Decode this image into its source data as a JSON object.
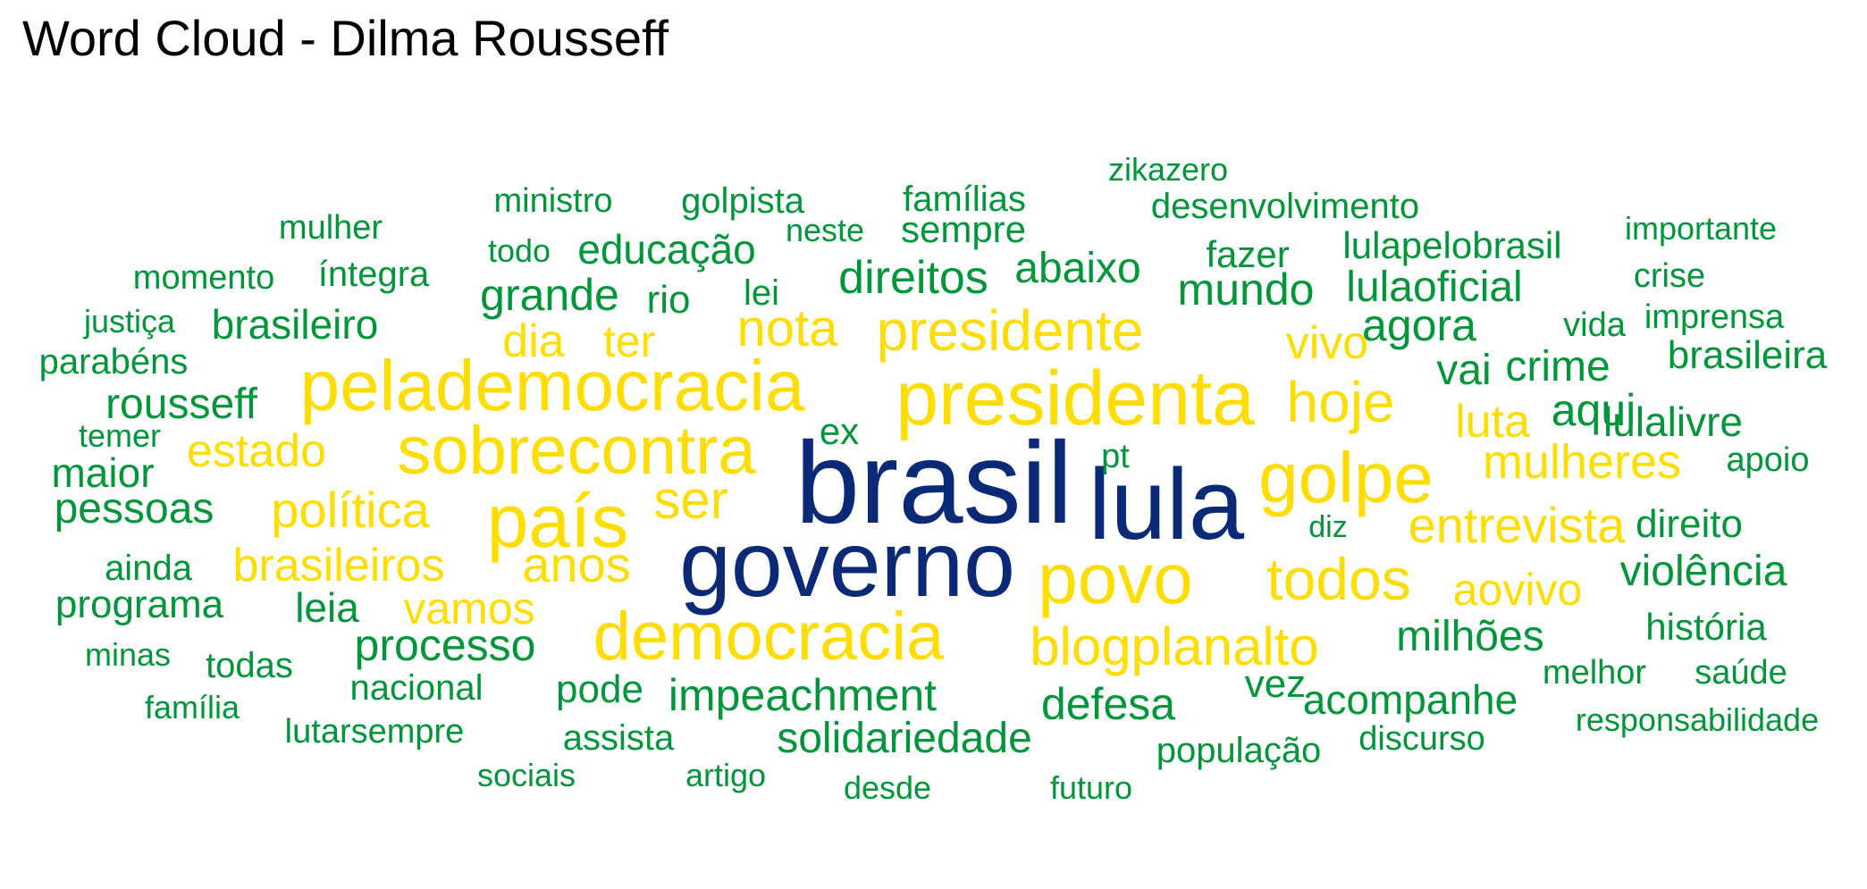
{
  "chart_data": {
    "type": "wordcloud",
    "title": "Word Cloud - Dilma Rousseff",
    "palette": {
      "navy": "#0a2a78",
      "yellow": "#ffdd00",
      "green": "#009639"
    },
    "words": [
      {
        "text": "brasil",
        "tier": 1,
        "color": "navy"
      },
      {
        "text": "lula",
        "tier": 1,
        "color": "navy"
      },
      {
        "text": "governo",
        "tier": 1,
        "color": "navy"
      },
      {
        "text": "presidenta",
        "tier": 2,
        "color": "yellow"
      },
      {
        "text": "pelademocracia",
        "tier": 2,
        "color": "yellow"
      },
      {
        "text": "sobrecontra",
        "tier": 2,
        "color": "yellow"
      },
      {
        "text": "país",
        "tier": 2,
        "color": "yellow"
      },
      {
        "text": "golpe",
        "tier": 2,
        "color": "yellow"
      },
      {
        "text": "povo",
        "tier": 2,
        "color": "yellow"
      },
      {
        "text": "democracia",
        "tier": 2,
        "color": "yellow"
      },
      {
        "text": "presidente",
        "tier": 3,
        "color": "yellow"
      },
      {
        "text": "todos",
        "tier": 3,
        "color": "yellow"
      },
      {
        "text": "hoje",
        "tier": 3,
        "color": "yellow"
      },
      {
        "text": "ser",
        "tier": 3,
        "color": "yellow"
      },
      {
        "text": "blogplanalto",
        "tier": 3,
        "color": "yellow"
      },
      {
        "text": "entrevista",
        "tier": 3,
        "color": "yellow"
      },
      {
        "text": "nota",
        "tier": 3,
        "color": "yellow"
      },
      {
        "text": "mulheres",
        "tier": 4,
        "color": "yellow"
      },
      {
        "text": "política",
        "tier": 4,
        "color": "yellow"
      },
      {
        "text": "brasileiros",
        "tier": 4,
        "color": "yellow"
      },
      {
        "text": "anos",
        "tier": 4,
        "color": "yellow"
      },
      {
        "text": "estado",
        "tier": 4,
        "color": "yellow"
      },
      {
        "text": "vivo",
        "tier": 4,
        "color": "yellow"
      },
      {
        "text": "luta",
        "tier": 4,
        "color": "yellow"
      },
      {
        "text": "aovivo",
        "tier": 4,
        "color": "yellow"
      },
      {
        "text": "dia",
        "tier": 4,
        "color": "yellow"
      },
      {
        "text": "ter",
        "tier": 4,
        "color": "yellow"
      },
      {
        "text": "vamos",
        "tier": 4,
        "color": "yellow"
      },
      {
        "text": "impeachment",
        "tier": 4,
        "color": "green"
      },
      {
        "text": "processo",
        "tier": 4,
        "color": "green"
      },
      {
        "text": "solidariedade",
        "tier": 5,
        "color": "green"
      },
      {
        "text": "direitos",
        "tier": 5,
        "color": "green"
      },
      {
        "text": "grande",
        "tier": 5,
        "color": "green"
      },
      {
        "text": "mundo",
        "tier": 5,
        "color": "green"
      },
      {
        "text": "lulaoficial",
        "tier": 5,
        "color": "green"
      },
      {
        "text": "agora",
        "tier": 5,
        "color": "green"
      },
      {
        "text": "abaixo",
        "tier": 5,
        "color": "green"
      },
      {
        "text": "defesa",
        "tier": 5,
        "color": "green"
      },
      {
        "text": "milhões",
        "tier": 5,
        "color": "green"
      },
      {
        "text": "acompanhe",
        "tier": 5,
        "color": "green"
      },
      {
        "text": "aqui",
        "tier": 5,
        "color": "green"
      },
      {
        "text": "crime",
        "tier": 5,
        "color": "green"
      },
      {
        "text": "vai",
        "tier": 5,
        "color": "green"
      },
      {
        "text": "educação",
        "tier": 5,
        "color": "green"
      },
      {
        "text": "brasileiro",
        "tier": 5,
        "color": "green"
      },
      {
        "text": "rousseff",
        "tier": 5,
        "color": "green"
      },
      {
        "text": "pessoas",
        "tier": 5,
        "color": "green"
      },
      {
        "text": "violência",
        "tier": 5,
        "color": "green"
      },
      {
        "text": "lulalivre",
        "tier": 5,
        "color": "green"
      },
      {
        "text": "pode",
        "tier": 6,
        "color": "green"
      },
      {
        "text": "rio",
        "tier": 6,
        "color": "green"
      },
      {
        "text": "leia",
        "tier": 6,
        "color": "green"
      },
      {
        "text": "vez",
        "tier": 6,
        "color": "green"
      },
      {
        "text": "direito",
        "tier": 6,
        "color": "green"
      },
      {
        "text": "brasileira",
        "tier": 6,
        "color": "green"
      },
      {
        "text": "programa",
        "tier": 6,
        "color": "green"
      },
      {
        "text": "sempre",
        "tier": 6,
        "color": "green"
      },
      {
        "text": "maior",
        "tier": 6,
        "color": "green"
      },
      {
        "text": "ex",
        "tier": 6,
        "color": "green"
      },
      {
        "text": "lulapelobrasil",
        "tier": 6,
        "color": "green"
      },
      {
        "text": "história",
        "tier": 6,
        "color": "green"
      },
      {
        "text": "fazer",
        "tier": 6,
        "color": "green"
      },
      {
        "text": "população",
        "tier": 6,
        "color": "green"
      },
      {
        "text": "desenvolvimento",
        "tier": 7,
        "color": "green"
      },
      {
        "text": "íntegra",
        "tier": 7,
        "color": "green"
      },
      {
        "text": "nacional",
        "tier": 7,
        "color": "green"
      },
      {
        "text": "assista",
        "tier": 7,
        "color": "green"
      },
      {
        "text": "parabéns",
        "tier": 7,
        "color": "green"
      },
      {
        "text": "lei",
        "tier": 7,
        "color": "green"
      },
      {
        "text": "famílias",
        "tier": 7,
        "color": "green"
      },
      {
        "text": "golpista",
        "tier": 7,
        "color": "green"
      },
      {
        "text": "ministro",
        "tier": 7,
        "color": "green"
      },
      {
        "text": "todas",
        "tier": 7,
        "color": "green"
      },
      {
        "text": "ainda",
        "tier": 7,
        "color": "green"
      },
      {
        "text": "momento",
        "tier": 7,
        "color": "green"
      },
      {
        "text": "mulher",
        "tier": 7,
        "color": "green"
      },
      {
        "text": "imprensa",
        "tier": 7,
        "color": "green"
      },
      {
        "text": "vida",
        "tier": 7,
        "color": "green"
      },
      {
        "text": "discurso",
        "tier": 7,
        "color": "green"
      },
      {
        "text": "lutarsempre",
        "tier": 7,
        "color": "green"
      },
      {
        "text": "melhor",
        "tier": 7,
        "color": "green"
      },
      {
        "text": "saúde",
        "tier": 7,
        "color": "green"
      },
      {
        "text": "apoio",
        "tier": 7,
        "color": "green"
      },
      {
        "text": "crise",
        "tier": 7,
        "color": "green"
      },
      {
        "text": "responsabilidade",
        "tier": 7,
        "color": "green"
      },
      {
        "text": "importante",
        "tier": 8,
        "color": "green"
      },
      {
        "text": "zikazero",
        "tier": 8,
        "color": "green"
      },
      {
        "text": "todo",
        "tier": 8,
        "color": "green"
      },
      {
        "text": "neste",
        "tier": 8,
        "color": "green"
      },
      {
        "text": "justiça",
        "tier": 8,
        "color": "green"
      },
      {
        "text": "temer",
        "tier": 8,
        "color": "green"
      },
      {
        "text": "minas",
        "tier": 8,
        "color": "green"
      },
      {
        "text": "família",
        "tier": 8,
        "color": "green"
      },
      {
        "text": "sociais",
        "tier": 8,
        "color": "green"
      },
      {
        "text": "artigo",
        "tier": 8,
        "color": "green"
      },
      {
        "text": "desde",
        "tier": 8,
        "color": "green"
      },
      {
        "text": "futuro",
        "tier": 8,
        "color": "green"
      },
      {
        "text": "diz",
        "tier": 8,
        "color": "green"
      },
      {
        "text": "pt",
        "tier": 8,
        "color": "green"
      }
    ]
  }
}
